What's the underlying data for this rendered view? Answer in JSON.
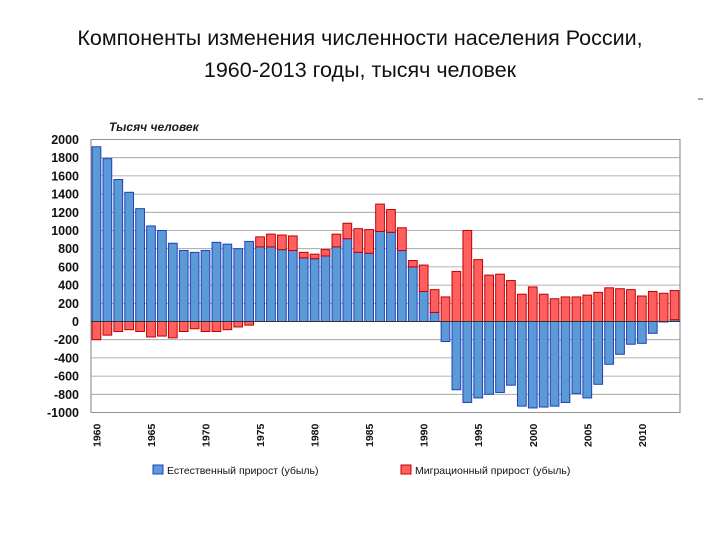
{
  "title": {
    "line1": "Компоненты изменения численности населения России,",
    "line2": "1960-2013 годы, тысяч человек"
  },
  "chart_data": {
    "type": "bar",
    "stacked": true,
    "unit_label": "Тысяч человек",
    "ylim": [
      -1000,
      2000
    ],
    "y_ticks": [
      2000,
      1800,
      1600,
      1400,
      1200,
      1000,
      800,
      600,
      400,
      200,
      0,
      -200,
      -400,
      -600,
      -800,
      -1000
    ],
    "x_tick_labels": [
      "1960",
      "1965",
      "1970",
      "1975",
      "1980",
      "1985",
      "1990",
      "1995",
      "2000",
      "2005",
      "2010"
    ],
    "grid": true,
    "legend_position": "bottom",
    "x": [
      1960,
      1961,
      1962,
      1963,
      1964,
      1965,
      1966,
      1967,
      1968,
      1969,
      1970,
      1971,
      1972,
      1973,
      1974,
      1975,
      1976,
      1977,
      1978,
      1979,
      1980,
      1981,
      1982,
      1983,
      1984,
      1985,
      1986,
      1987,
      1988,
      1989,
      1990,
      1991,
      1992,
      1993,
      1994,
      1995,
      1996,
      1997,
      1998,
      1999,
      2000,
      2001,
      2002,
      2003,
      2004,
      2005,
      2006,
      2007,
      2008,
      2009,
      2010,
      2011,
      2012,
      2013
    ],
    "series": [
      {
        "name": "Естественный прирост (убыль)",
        "color": "#5b9bd5",
        "edge": "#1f3fc0",
        "values": [
          1920,
          1790,
          1560,
          1420,
          1240,
          1050,
          1000,
          860,
          780,
          760,
          780,
          870,
          850,
          800,
          880,
          820,
          820,
          790,
          780,
          700,
          690,
          720,
          820,
          910,
          760,
          750,
          990,
          980,
          780,
          600,
          330,
          100,
          -220,
          -750,
          -890,
          -840,
          -800,
          -780,
          -700,
          -930,
          -950,
          -940,
          -930,
          -890,
          -790,
          -840,
          -690,
          -470,
          -360,
          -250,
          -240,
          -130,
          -5,
          20
        ]
      },
      {
        "name": "Миграционный прирост (убыль)",
        "color": "#ff5f5f",
        "edge": "#c00000",
        "values": [
          -200,
          -150,
          -110,
          -90,
          -110,
          -170,
          -160,
          -180,
          -110,
          -80,
          -110,
          -110,
          -90,
          -60,
          -40,
          110,
          140,
          160,
          160,
          60,
          50,
          70,
          140,
          170,
          260,
          260,
          300,
          250,
          250,
          70,
          290,
          250,
          270,
          550,
          1000,
          680,
          510,
          520,
          450,
          300,
          380,
          300,
          250,
          270,
          270,
          290,
          320,
          370,
          360,
          350,
          280,
          330,
          310,
          320
        ]
      }
    ]
  }
}
